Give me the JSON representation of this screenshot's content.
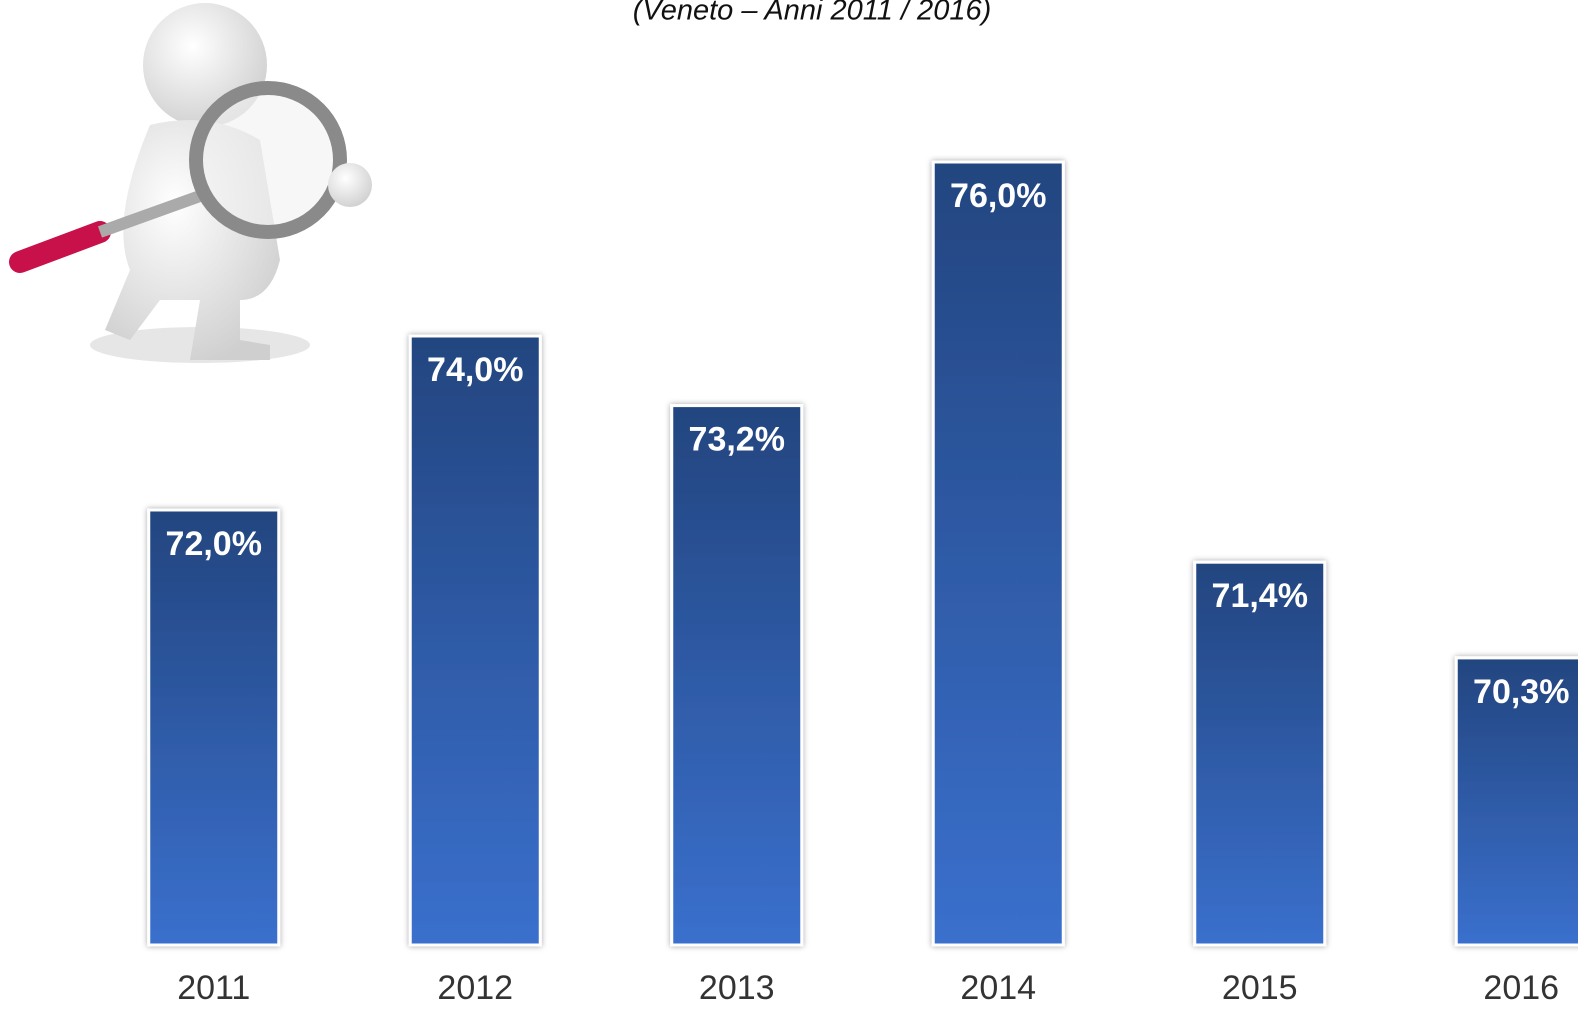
{
  "chart_data": {
    "type": "bar",
    "subtitle": "(Veneto – Anni 2011 / 2016)",
    "categories": [
      "2011",
      "2012",
      "2013",
      "2014",
      "2015",
      "2016"
    ],
    "values": [
      72.0,
      74.0,
      73.2,
      76.0,
      71.4,
      70.3
    ],
    "value_labels": [
      "72,0%",
      "74,0%",
      "73,2%",
      "76,0%",
      "71,4%",
      "70,3%"
    ],
    "color": "#2c56a3",
    "ylim": [
      67,
      77
    ],
    "grid": false
  }
}
